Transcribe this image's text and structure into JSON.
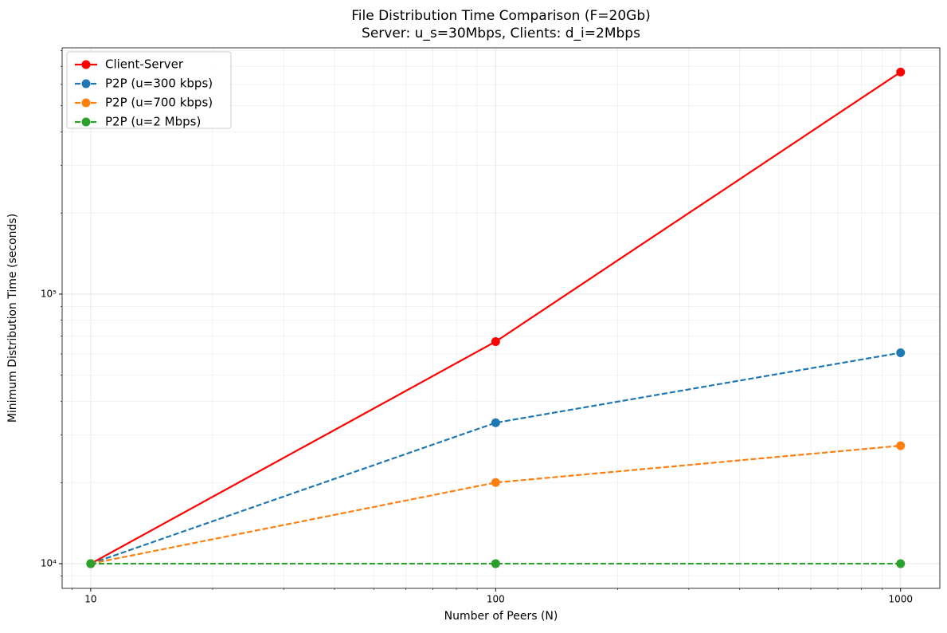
{
  "chart_data": {
    "type": "line",
    "title": "File Distribution Time Comparison (F=20Gb)",
    "subtitle": "Server: u_s=30Mbps, Clients: d_i=2Mbps",
    "x_label": "Number of Peers (N)",
    "y_label": "Minimum Distribution Time (seconds)",
    "x": [
      10,
      100,
      1000
    ],
    "series": [
      {
        "name": "Client-Server",
        "color": "#ff0000",
        "linestyle": "solid",
        "values": [
          10000,
          66667,
          666667
        ]
      },
      {
        "name": "P2P (u=300 kbps)",
        "color": "#1f77b4",
        "linestyle": "dashed",
        "values": [
          10000,
          33333,
          60606
        ]
      },
      {
        "name": "P2P (u=700 kbps)",
        "color": "#ff7f0e",
        "linestyle": "dashed",
        "values": [
          10000,
          20000,
          27397
        ]
      },
      {
        "name": "P2P (u=2 Mbps)",
        "color": "#2ca02c",
        "linestyle": "dashed",
        "values": [
          10000,
          10000,
          10000
        ]
      }
    ],
    "xlog": true,
    "ylog": true,
    "xlim": [
      8.5,
      1250
    ],
    "ylim": [
      8100,
      820000
    ],
    "xticks": [
      10,
      100,
      1000
    ],
    "yticks": [
      {
        "value": 10000,
        "label": "10⁴"
      },
      {
        "value": 100000,
        "label": "10⁵"
      }
    ],
    "xminor_ticks": [
      9,
      20,
      30,
      40,
      50,
      60,
      70,
      80,
      90,
      200,
      300,
      400,
      500,
      600,
      700,
      800,
      900
    ],
    "yminor_ticks": [
      9000,
      20000,
      30000,
      40000,
      50000,
      60000,
      70000,
      80000,
      90000,
      200000,
      300000,
      400000,
      500000,
      600000,
      700000,
      800000
    ],
    "grid": true,
    "legend": "upper-left"
  }
}
